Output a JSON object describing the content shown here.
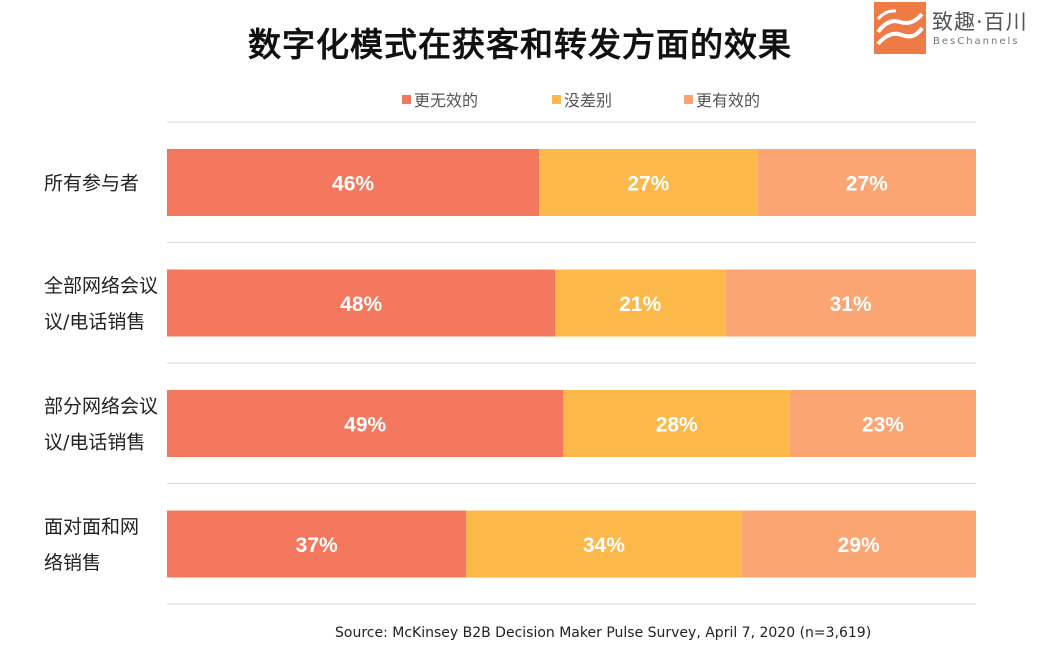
{
  "chart_data": {
    "type": "bar",
    "orientation": "horizontal",
    "stacked": true,
    "percent": true,
    "title": "数字化模式在获客和转发方面的效果",
    "categories": [
      "所有参与者",
      "全部网络会议/电话销售",
      "部分网络会议/电话销售",
      "面对面和网络销售"
    ],
    "category_lines": [
      [
        "所有参与者"
      ],
      [
        "全部网络会议",
        "议/电话销售"
      ],
      [
        "部分网络会议",
        "议/电话销售"
      ],
      [
        "面对面和网",
        "络销售"
      ]
    ],
    "series": [
      {
        "name": "更无效的",
        "values": [
          46,
          48,
          49,
          37
        ],
        "labels": [
          "46%",
          "48%",
          "49%",
          "37%"
        ],
        "color": "#F4785E"
      },
      {
        "name": "没差别",
        "values": [
          27,
          21,
          28,
          34
        ],
        "labels": [
          "27%",
          "21%",
          "28%",
          "34%"
        ],
        "color": "#FCB94A"
      },
      {
        "name": "更有效的",
        "values": [
          27,
          31,
          23,
          29
        ],
        "labels": [
          "27%",
          "31%",
          "23%",
          "29%"
        ],
        "color": "#FBA572"
      }
    ],
    "xlim": [
      0,
      100
    ],
    "grid": true,
    "legend_position": "top",
    "source": "Source: McKinsey B2B Decision Maker Pulse Survey, April 7, 2020 (n=3,619)"
  },
  "logo": {
    "name": "致趣·百川",
    "sub": "BesChannels",
    "color": "#EE7A46"
  }
}
